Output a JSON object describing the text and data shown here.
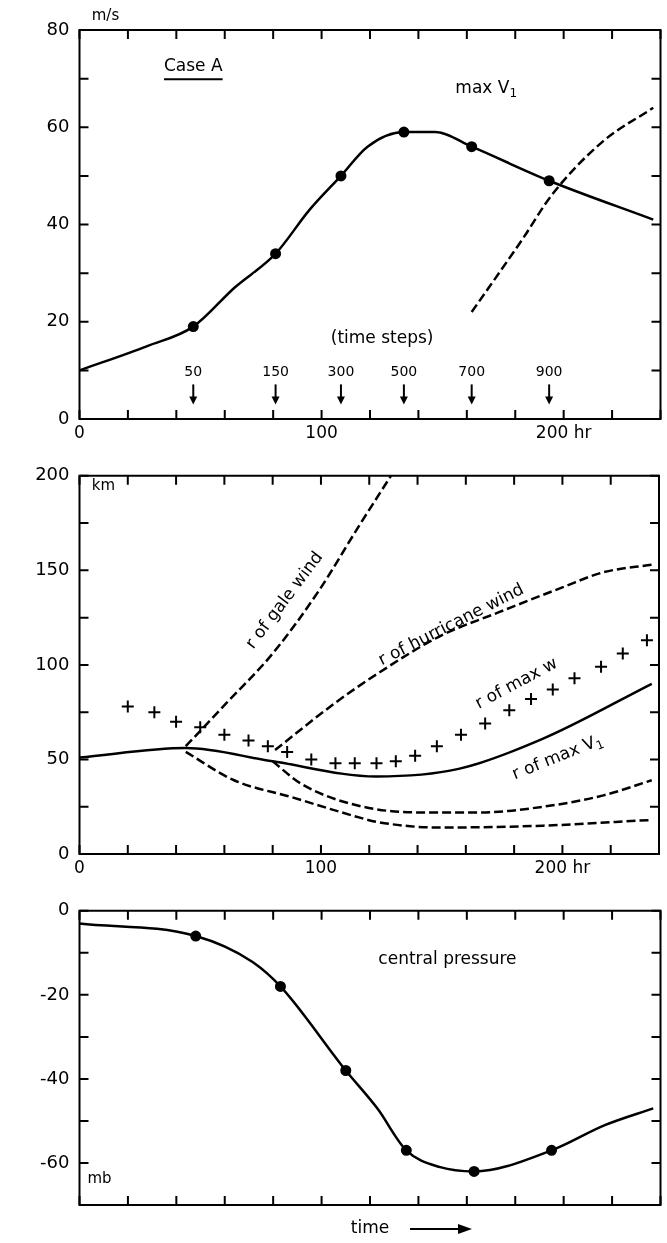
{
  "chart_data": [
    {
      "type": "line",
      "ylabel": "m/s",
      "xlim": [
        0,
        240
      ],
      "ylim": [
        0,
        80
      ],
      "xticks": [
        0,
        {
          "value": 20,
          "label": null
        },
        {
          "value": 40,
          "label": null
        },
        {
          "value": 60,
          "label": null
        },
        {
          "value": 80,
          "label": null
        },
        100,
        {
          "value": 120,
          "label": null
        },
        {
          "value": 140,
          "label": null
        },
        {
          "value": 160,
          "label": null
        },
        {
          "value": 180,
          "label": null
        },
        {
          "value": 200,
          "label": "200 hr"
        },
        {
          "value": 220,
          "label": null
        },
        {
          "value": 240,
          "label": null
        }
      ],
      "yticks": [
        0,
        {
          "value": 10,
          "label": null
        },
        20,
        {
          "value": 30,
          "label": null
        },
        40,
        {
          "value": 50,
          "label": null
        },
        60,
        {
          "value": 70,
          "label": null
        },
        80
      ],
      "annotations": [
        "Case A",
        "(time steps)",
        "50",
        "150",
        "300",
        "500",
        "700",
        "900"
      ],
      "series": [
        {
          "name": "max V$_{1}$",
          "color": "#000000",
          "marker": "none",
          "line_style": "solid",
          "x": [
            0,
            28,
            47,
            64,
            81,
            95,
            108,
            119,
            134,
            147,
            162,
            194,
            237
          ],
          "values": [
            10,
            15,
            19,
            27,
            34,
            43,
            50,
            56,
            59,
            59,
            56,
            49,
            41
          ]
        },
        {
          "type": "scatter",
          "color": "#000000",
          "marker": "circle",
          "x": [
            47,
            81,
            108,
            134,
            162,
            194
          ],
          "values": [
            19,
            34,
            50,
            59,
            56,
            49
          ]
        },
        {
          "color": "#000000",
          "marker": "none",
          "line_style": "dashed",
          "x": [
            162,
            183,
            195,
            216,
            237
          ],
          "values": [
            22,
            37,
            46,
            57,
            64
          ]
        }
      ]
    },
    {
      "type": "line",
      "ylabel": "km",
      "xlim": [
        0,
        240
      ],
      "ylim": [
        0,
        200
      ],
      "xticks": [
        0,
        {
          "value": 20,
          "label": null
        },
        {
          "value": 40,
          "label": null
        },
        {
          "value": 60,
          "label": null
        },
        {
          "value": 80,
          "label": null
        },
        100,
        {
          "value": 120,
          "label": null
        },
        {
          "value": 140,
          "label": null
        },
        {
          "value": 160,
          "label": null
        },
        {
          "value": 180,
          "label": null
        },
        {
          "value": 200,
          "label": "200 hr"
        },
        {
          "value": 220,
          "label": null
        },
        {
          "value": 240,
          "label": null
        }
      ],
      "yticks": [
        0,
        {
          "value": 25,
          "label": null
        },
        50,
        {
          "value": 75,
          "label": null
        },
        100,
        {
          "value": 125,
          "label": null
        },
        150,
        {
          "value": 175,
          "label": null
        },
        200
      ],
      "series": [
        {
          "name": "r of max V$_{1}$",
          "color": "#000000",
          "marker": "none",
          "line_style": "solid",
          "x": [
            0,
            44,
            80,
            123,
            157,
            192,
            237
          ],
          "values": [
            51,
            56,
            49,
            41,
            45,
            61,
            90
          ]
        },
        {
          "name": "r of max w",
          "type": "scatter",
          "color": "#000000",
          "marker": "cross",
          "x": [
            20,
            31,
            40,
            50,
            60,
            70,
            78,
            86,
            96,
            106,
            114,
            123,
            131,
            139,
            148,
            158,
            168,
            178,
            187,
            196,
            205,
            216,
            225,
            235
          ],
          "values": [
            78,
            75,
            70,
            67,
            63,
            60,
            57,
            54,
            50,
            48,
            48,
            48,
            49,
            52,
            57,
            63,
            69,
            76,
            82,
            87,
            93,
            99,
            106,
            113
          ]
        },
        {
          "name": "r of gale wind",
          "color": "#000000",
          "marker": "none",
          "line_style": "dashed",
          "x": [
            44,
            61,
            80,
            99,
            116,
            129
          ],
          "values": [
            57,
            80,
            106,
            139,
            174,
            200
          ]
        },
        {
          "color": "#000000",
          "marker": "none",
          "line_style": "dashed",
          "x": [
            44,
            64,
            88,
            114,
            123,
            149,
            192,
            237
          ],
          "values": [
            54,
            39,
            30,
            20,
            17,
            14,
            15,
            18
          ]
        },
        {
          "name": "r of hurricane wind",
          "color": "#000000",
          "marker": "none",
          "line_style": "dashed",
          "x": [
            81,
            106,
            123,
            149,
            174,
            200,
            217,
            237
          ],
          "values": [
            55,
            80,
            95,
            115,
            128,
            141,
            149,
            153
          ]
        },
        {
          "color": "#000000",
          "marker": "none",
          "line_style": "dashed",
          "x": [
            80,
            92,
            114,
            140,
            166,
            192,
            217,
            237
          ],
          "values": [
            49,
            37,
            26,
            22,
            22,
            25,
            31,
            39
          ]
        }
      ]
    },
    {
      "type": "line",
      "ylabel": "mb",
      "xlabel": "time",
      "tick_labels": "y",
      "xlim": [
        0,
        240
      ],
      "ylim": [
        -70,
        0
      ],
      "xticks": [
        0,
        20,
        40,
        60,
        80,
        100,
        120,
        140,
        160,
        180,
        200,
        220,
        240
      ],
      "yticks": [
        {
          "value": -70,
          "label": null
        },
        -60,
        {
          "value": -50,
          "label": null
        },
        -40,
        {
          "value": -30,
          "label": null
        },
        -20,
        {
          "value": -10,
          "label": null
        },
        0
      ],
      "series": [
        {
          "name": "central pressure",
          "color": "#000000",
          "marker": "none",
          "line_style": "solid",
          "x": [
            0,
            48,
            71,
            83,
            110,
            123,
            135,
            149,
            163,
            195,
            217,
            237
          ],
          "values": [
            -3,
            -6,
            -12,
            -18,
            -38,
            -47,
            -57,
            -61,
            -62,
            -57,
            -51,
            -47
          ]
        },
        {
          "type": "scatter",
          "color": "#000000",
          "marker": "circle",
          "x": [
            48,
            83,
            110,
            135,
            163,
            195
          ],
          "values": [
            -6,
            -18,
            -38,
            -57,
            -62,
            -57
          ]
        }
      ]
    }
  ]
}
